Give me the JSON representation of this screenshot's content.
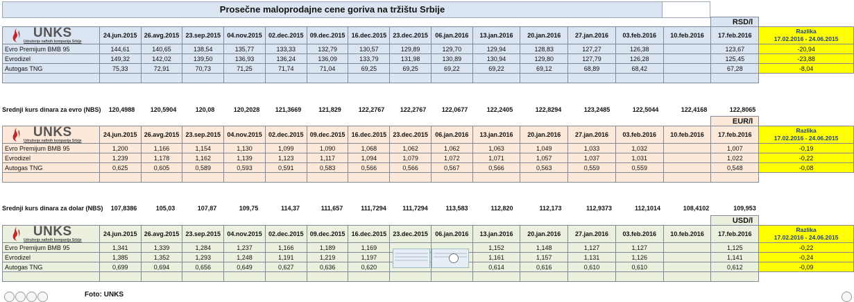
{
  "title": "Prosečne maloprodajne cene goriva na tržištu Srbije",
  "logo": {
    "brand": "UNKS",
    "tagline": "Udruženje naftnih kompanija Srbije"
  },
  "dates": [
    "24.jun.2015",
    "26.avg.2015",
    "23.sep.2015",
    "04.nov.2015",
    "02.dec.2015",
    "09.dec.2015",
    "16.dec.2015",
    "23.dec.2015",
    "06.jan.2016",
    "13.jan.2016",
    "20.jan.2016",
    "27.jan.2016",
    "03.feb.2016",
    "10.feb.2016",
    "17.feb.2016"
  ],
  "diff_header": [
    "Razlika",
    "17.02.2016 - 24.06.2015"
  ],
  "sections": [
    {
      "unit": "RSD/l",
      "rows": [
        {
          "name": "Evro Premijum BMB 95",
          "values": [
            "144,61",
            "140,65",
            "138,54",
            "135,77",
            "133,33",
            "132,79",
            "130,57",
            "129,89",
            "129,70",
            "129,94",
            "128,83",
            "127,27",
            "126,38",
            "",
            "123,67"
          ],
          "diff": "-20,94"
        },
        {
          "name": "Evrodizel",
          "values": [
            "149,32",
            "142,02",
            "139,50",
            "136,93",
            "136,24",
            "136,09",
            "133,79",
            "131,98",
            "130,89",
            "130,94",
            "129,80",
            "127,79",
            "126,28",
            "",
            "125,45"
          ],
          "diff": "-23,88"
        },
        {
          "name": "Autogas TNG",
          "values": [
            "75,33",
            "72,91",
            "70,73",
            "71,25",
            "71,74",
            "71,04",
            "69,25",
            "69,25",
            "69,22",
            "69,22",
            "69,12",
            "68,89",
            "68,42",
            "",
            "67,28"
          ],
          "diff": "-8,04"
        }
      ]
    },
    {
      "unit": "EUR/l",
      "rows": [
        {
          "name": "Evro Premijum BMB 95",
          "values": [
            "1,200",
            "1,166",
            "1,154",
            "1,130",
            "1,099",
            "1,090",
            "1,068",
            "1,062",
            "1,062",
            "1,063",
            "1,049",
            "1,033",
            "1,032",
            "",
            "1,007"
          ],
          "diff": "-0,19"
        },
        {
          "name": "Evrodizel",
          "values": [
            "1,239",
            "1,178",
            "1,162",
            "1,139",
            "1,123",
            "1,117",
            "1,094",
            "1,079",
            "1,072",
            "1,071",
            "1,057",
            "1,037",
            "1,031",
            "",
            "1,022"
          ],
          "diff": "-0,22"
        },
        {
          "name": "Autogas TNG",
          "values": [
            "0,625",
            "0,605",
            "0,589",
            "0,593",
            "0,591",
            "0,583",
            "0,566",
            "0,566",
            "0,567",
            "0,566",
            "0,563",
            "0,559",
            "0,559",
            "",
            "0,548"
          ],
          "diff": "-0,08"
        }
      ]
    },
    {
      "unit": "USD/l",
      "rows": [
        {
          "name": "Evro Premijum BMB 95",
          "values": [
            "1,341",
            "1,339",
            "1,284",
            "1,237",
            "1,166",
            "1,189",
            "1,169",
            "",
            "",
            "1,152",
            "1,148",
            "1,127",
            "1,127",
            "",
            "1,125"
          ],
          "diff": "-0,22"
        },
        {
          "name": "Evrodizel",
          "values": [
            "1,385",
            "1,352",
            "1,293",
            "1,248",
            "1,191",
            "1,219",
            "1,197",
            "",
            "",
            "1,161",
            "1,157",
            "1,131",
            "1,126",
            "",
            "1,141"
          ],
          "diff": "-0,24"
        },
        {
          "name": "Autogas TNG",
          "values": [
            "0,699",
            "0,694",
            "0,656",
            "0,649",
            "0,627",
            "0,636",
            "0,620",
            "",
            "",
            "0,614",
            "0,616",
            "0,610",
            "0,610",
            "",
            "0,612"
          ],
          "diff": "-0,09"
        }
      ]
    }
  ],
  "eur_rate": {
    "label": "Srednji kurs dinara za evro (NBS)",
    "values": [
      "120,4988",
      "120,5904",
      "120,08",
      "120,2028",
      "121,3669",
      "121,829",
      "122,2767",
      "122,2767",
      "122,0677",
      "122,2405",
      "122,8294",
      "123,2485",
      "122,5044",
      "122,4168",
      "122,8065"
    ]
  },
  "usd_rate": {
    "label": "Srednji kurs dinara za dolar (NBS)",
    "values": [
      "107,8386",
      "105,03",
      "107,87",
      "109,75",
      "114,37",
      "111,657",
      "111,7294",
      "111,7294",
      "113,583",
      "112,820",
      "112,173",
      "112,9373",
      "112,1014",
      "108,4102",
      "109,953"
    ]
  },
  "footer": {
    "credit": "Foto: UNKS"
  },
  "colors": {
    "rsd_bg": "#dbe5f1",
    "eur_bg": "#fde9d9",
    "usd_bg": "#ebf1de",
    "highlight": "#ffff00",
    "diff_text": "#1f3f8f"
  }
}
